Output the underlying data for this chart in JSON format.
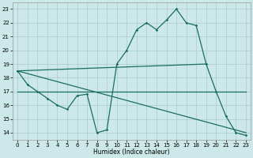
{
  "bg_color": "#cce8e8",
  "grid_color": "#aacccc",
  "line_color": "#1a6e5e",
  "xlabel": "Humidex (Indice chaleur)",
  "xlim": [
    -0.5,
    23.5
  ],
  "ylim": [
    13.5,
    23.5
  ],
  "xticks": [
    0,
    1,
    2,
    3,
    4,
    5,
    6,
    7,
    8,
    9,
    10,
    11,
    12,
    13,
    14,
    15,
    16,
    17,
    18,
    19,
    20,
    21,
    22,
    23
  ],
  "yticks": [
    14,
    15,
    16,
    17,
    18,
    19,
    20,
    21,
    22,
    23
  ],
  "line1_x": [
    0,
    1,
    2,
    3,
    4,
    5,
    6,
    7,
    8,
    9,
    10,
    11,
    12,
    13,
    14,
    15,
    16,
    17,
    18,
    19,
    20,
    21,
    22,
    23
  ],
  "line1_y": [
    18.5,
    17.5,
    17.0,
    16.5,
    16.0,
    15.7,
    16.7,
    16.8,
    14.0,
    14.2,
    19.0,
    20.0,
    21.5,
    22.0,
    21.5,
    22.2,
    23.0,
    22.0,
    21.8,
    19.0,
    17.0,
    15.2,
    14.0,
    13.8
  ],
  "line2_x": [
    0,
    19
  ],
  "line2_y": [
    18.5,
    19.0
  ],
  "line3_x": [
    0,
    23
  ],
  "line3_y": [
    17.0,
    17.0
  ],
  "line4_x": [
    0,
    23
  ],
  "line4_y": [
    18.5,
    14.0
  ]
}
